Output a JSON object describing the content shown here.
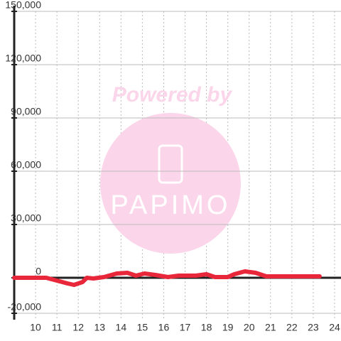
{
  "chart_data": {
    "type": "line",
    "watermark": {
      "title": "Powered by",
      "brand": "PAPIMO"
    },
    "x": [
      9,
      10,
      10.5,
      11,
      11.5,
      11.8,
      12.2,
      12.4,
      12.7,
      13.2,
      13.8,
      14.3,
      14.7,
      15.1,
      15.6,
      16.2,
      16.7,
      17.5,
      18,
      18.4,
      19,
      19.3,
      19.8,
      20.3,
      20.8,
      21.5,
      23.3
    ],
    "series": [
      {
        "color": "#e8273a",
        "values": [
          0,
          0,
          0,
          -1600,
          -3200,
          -4000,
          -2400,
          0,
          -400,
          400,
          2400,
          2800,
          1200,
          2400,
          1600,
          400,
          1200,
          1200,
          2000,
          400,
          400,
          2000,
          3600,
          2800,
          800,
          800,
          800
        ]
      }
    ],
    "xlim": [
      9,
      24.3
    ],
    "xticks": [
      10,
      11,
      12,
      13,
      14,
      15,
      16,
      17,
      18,
      19,
      20,
      21,
      22,
      23,
      24
    ],
    "ylim": [
      -23600,
      150000
    ],
    "yticks": [
      {
        "value": -20000,
        "label": "-20,000"
      },
      0,
      {
        "value": 30000,
        "label": "30,000"
      },
      {
        "value": 60000,
        "label": "60,000"
      },
      {
        "value": 90000,
        "label": "90,000"
      },
      {
        "value": 120000,
        "label": "120,000"
      },
      {
        "value": 150000,
        "label": "150,000"
      }
    ],
    "grid": true
  }
}
